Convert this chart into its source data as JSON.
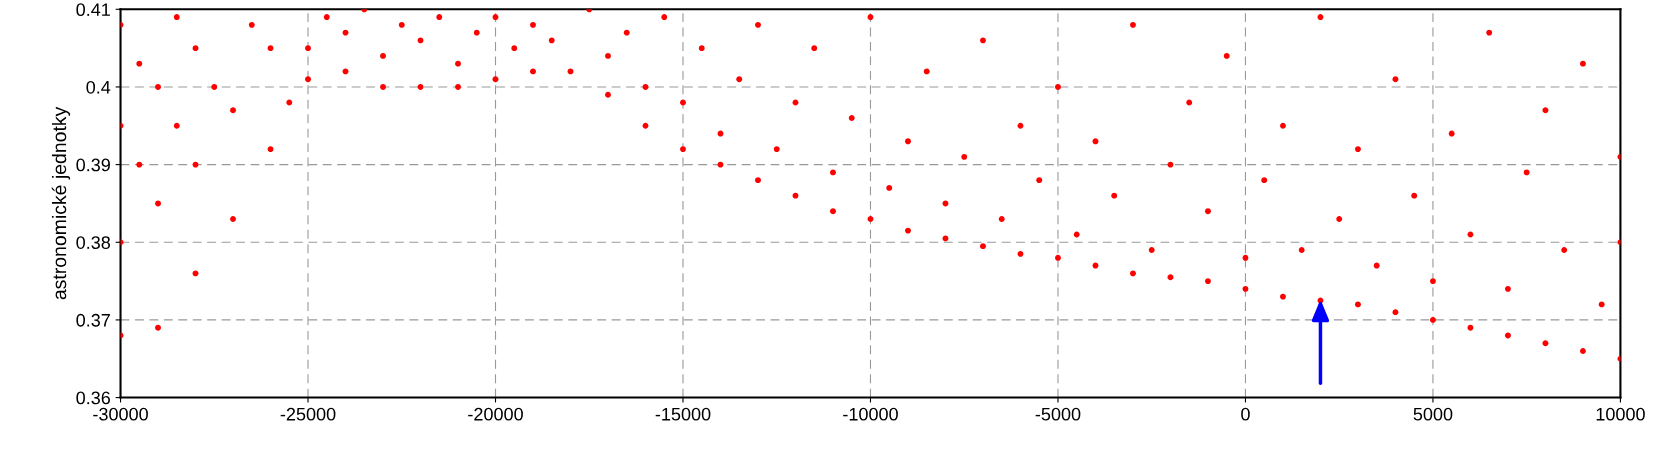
{
  "chart_data": {
    "type": "scatter",
    "ylabel": "astronomické jednotky",
    "xlim": [
      -30000,
      10000
    ],
    "xticks": [
      -30000,
      -25000,
      -20000,
      -15000,
      -10000,
      -5000,
      0,
      5000,
      10000
    ],
    "ylim": [
      0.36,
      0.41
    ],
    "yticks": [
      0.36,
      0.37,
      0.38,
      0.39,
      0.4,
      0.41
    ],
    "grid": true,
    "marker": "circle",
    "series": [
      {
        "color": "#ff0000",
        "x": [
          -30000,
          -29000,
          -28000,
          -27000,
          -26000,
          -25500,
          -25000,
          -24000,
          -23000,
          -22000,
          -21000,
          -20000,
          -19000,
          -18000,
          -17000,
          -16000,
          -15000,
          -14000,
          -13000,
          -12000,
          -11000,
          -10000,
          -9000,
          -8000,
          -7000,
          -6000,
          -5000,
          -4000,
          -3000,
          -2000,
          -1000,
          0,
          1000,
          2000,
          3000,
          4000,
          5000,
          6000,
          7000,
          8000,
          9000,
          10000,
          -30000,
          -30000,
          -30000,
          -29500,
          -29500,
          -29000,
          -29000,
          -28500,
          -28500,
          -28000,
          -28000,
          -27500,
          -27000,
          -26500,
          -26000,
          -25000,
          -24500,
          -24000,
          -23500,
          -23000,
          -22500,
          -22000,
          -21500,
          -21000,
          -20500,
          -20000,
          -19500,
          -19000,
          -18500,
          -17500,
          -17000,
          -16500,
          -16000,
          -15500,
          -15000,
          -14500,
          -14000,
          -13500,
          -13000,
          -12500,
          -12000,
          -11500,
          -11000,
          -10500,
          -10000,
          -9500,
          -9000,
          -8500,
          -8000,
          -7500,
          -7000,
          -6500,
          -6000,
          -5500,
          -5000,
          -4500,
          -4000,
          -3500,
          -3000,
          -2500,
          -2000,
          -1500,
          -1000,
          -500,
          0,
          500,
          1000,
          1500,
          2000,
          2500,
          3000,
          3500,
          4000,
          4500,
          5000,
          5500,
          6000,
          6500,
          7000,
          7500,
          8000,
          8500,
          9000,
          9500,
          10000,
          10000
        ],
        "values": [
          0.368,
          0.369,
          0.376,
          0.383,
          0.392,
          0.398,
          0.401,
          0.402,
          0.4,
          0.4,
          0.4,
          0.401,
          0.402,
          0.402,
          0.399,
          0.395,
          0.392,
          0.39,
          0.388,
          0.386,
          0.384,
          0.383,
          0.3815,
          0.3805,
          0.3795,
          0.3785,
          0.378,
          0.377,
          0.376,
          0.3755,
          0.375,
          0.374,
          0.373,
          0.3725,
          0.372,
          0.371,
          0.37,
          0.369,
          0.368,
          0.367,
          0.366,
          0.365,
          0.38,
          0.395,
          0.408,
          0.39,
          0.403,
          0.385,
          0.4,
          0.395,
          0.409,
          0.39,
          0.405,
          0.4,
          0.397,
          0.408,
          0.405,
          0.405,
          0.409,
          0.407,
          0.41,
          0.404,
          0.408,
          0.406,
          0.409,
          0.403,
          0.407,
          0.409,
          0.405,
          0.408,
          0.406,
          0.41,
          0.404,
          0.407,
          0.4,
          0.409,
          0.398,
          0.405,
          0.394,
          0.401,
          0.408,
          0.392,
          0.398,
          0.405,
          0.389,
          0.396,
          0.409,
          0.387,
          0.393,
          0.402,
          0.385,
          0.391,
          0.406,
          0.383,
          0.395,
          0.388,
          0.4,
          0.381,
          0.393,
          0.386,
          0.408,
          0.379,
          0.39,
          0.398,
          0.384,
          0.404,
          0.378,
          0.388,
          0.395,
          0.379,
          0.409,
          0.383,
          0.392,
          0.377,
          0.401,
          0.386,
          0.375,
          0.394,
          0.381,
          0.407,
          0.374,
          0.389,
          0.397,
          0.379,
          0.403,
          0.372,
          0.391,
          0.38
        ]
      }
    ]
  }
}
